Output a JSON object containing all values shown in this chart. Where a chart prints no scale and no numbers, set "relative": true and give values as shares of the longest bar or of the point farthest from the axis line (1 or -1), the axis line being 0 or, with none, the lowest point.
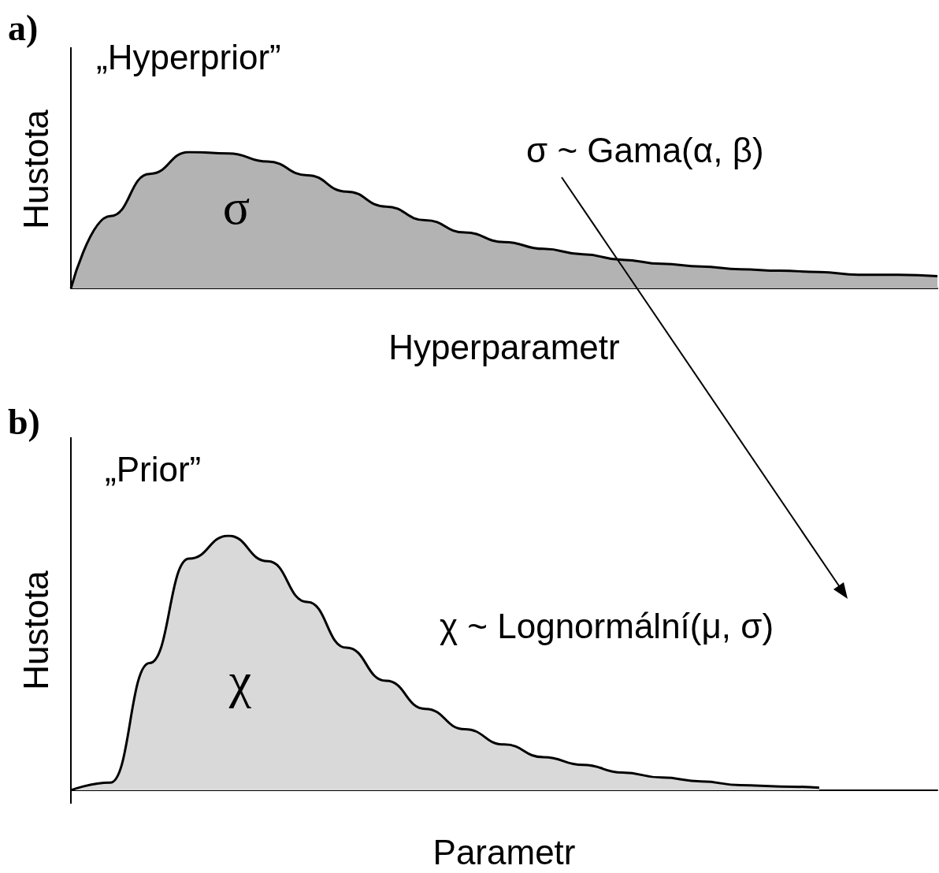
{
  "chart_data": [
    {
      "type": "area",
      "title": "„Hyperprior”",
      "xlabel": "Hyperparametr",
      "ylabel": "Hustota",
      "relative": true,
      "annotations": [
        "a)",
        "σ",
        "σ ~ Gama(α, β)"
      ],
      "categories": [
        null,
        null,
        null,
        null,
        null,
        null,
        null,
        null,
        null,
        null,
        null,
        null,
        null,
        null,
        null,
        null,
        null,
        null,
        null,
        null,
        null,
        null,
        null
      ],
      "series": [
        {
          "color": "#b3b3b3",
          "values": [
            0,
            0.53,
            0.84,
            1,
            0.99,
            0.93,
            0.83,
            0.71,
            0.6,
            0.5,
            0.41,
            0.34,
            0.29,
            0.25,
            0.21,
            0.18,
            0.16,
            0.14,
            0.13,
            0.12,
            0.1,
            0.1,
            0.09
          ]
        }
      ]
    },
    {
      "type": "area",
      "title": "„Prior”",
      "xlabel": "Parametr",
      "ylabel": "Hustota",
      "relative": true,
      "annotations": [
        "b)",
        "χ",
        "χ ~ Lognormální(μ, σ)"
      ],
      "categories": [
        null,
        null,
        null,
        null,
        null,
        null,
        null,
        null,
        null,
        null,
        null,
        null,
        null,
        null,
        null,
        null,
        null,
        null,
        null,
        null,
        null,
        null,
        null
      ],
      "series": [
        {
          "color": "#d9d9d9",
          "values": [
            0,
            0.03,
            0.5,
            0.91,
            1,
            0.9,
            0.74,
            0.56,
            0.43,
            0.32,
            0.24,
            0.18,
            0.13,
            0.1,
            0.07,
            0.05,
            0.035,
            0.02,
            0.015,
            0.01,
            null,
            null,
            null
          ]
        }
      ]
    }
  ]
}
